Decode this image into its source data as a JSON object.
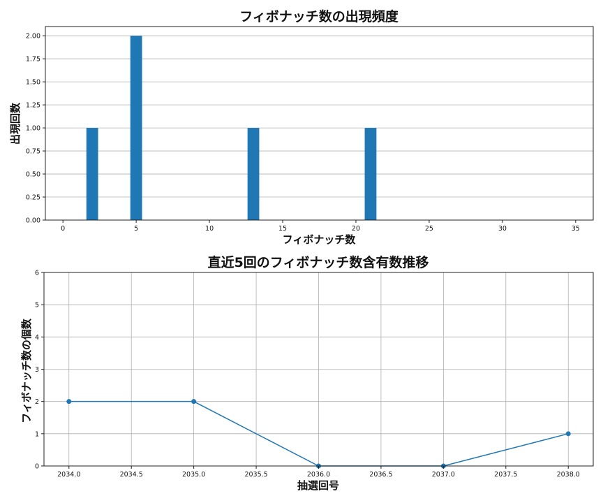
{
  "chart_data": [
    {
      "type": "bar",
      "title": "フィボナッチ数の出現頻度",
      "xlabel": "フィボナッチ数",
      "ylabel": "出現回数",
      "x": [
        2,
        5,
        13,
        21
      ],
      "values": [
        1,
        2,
        1,
        1
      ],
      "xlim": [
        -1.2,
        36.2
      ],
      "ylim": [
        0,
        2.1
      ],
      "x_ticks": [
        0,
        5,
        10,
        15,
        20,
        25,
        30,
        35
      ],
      "y_ticks": [
        0,
        0.25,
        0.5,
        0.75,
        1.0,
        1.25,
        1.5,
        1.75,
        2.0
      ],
      "y_tick_labels": [
        "0.00",
        "0.25",
        "0.50",
        "0.75",
        "1.00",
        "1.25",
        "1.50",
        "1.75",
        "2.00"
      ],
      "bar_width": 0.8,
      "grid": "y",
      "color": "#1f77b4"
    },
    {
      "type": "line",
      "title": "直近5回のフィボナッチ数含有数推移",
      "xlabel": "抽選回号",
      "ylabel": "フィボナッチ数の個数",
      "x": [
        2034,
        2035,
        2036,
        2037,
        2038
      ],
      "values": [
        2,
        2,
        0,
        0,
        1
      ],
      "xlim": [
        2033.8,
        2038.2
      ],
      "ylim": [
        0,
        6
      ],
      "x_ticks": [
        2034,
        2034.5,
        2035,
        2035.5,
        2036,
        2036.5,
        2037,
        2037.5,
        2038
      ],
      "x_tick_labels": [
        "2034.0",
        "2034.5",
        "2035.0",
        "2035.5",
        "2036.0",
        "2036.5",
        "2037.0",
        "2037.5",
        "2038.0"
      ],
      "y_ticks": [
        0,
        1,
        2,
        3,
        4,
        5,
        6
      ],
      "y_tick_labels": [
        "0",
        "1",
        "2",
        "3",
        "4",
        "5",
        "6"
      ],
      "grid": "both",
      "marker": "circle",
      "color": "#1f77b4"
    }
  ]
}
